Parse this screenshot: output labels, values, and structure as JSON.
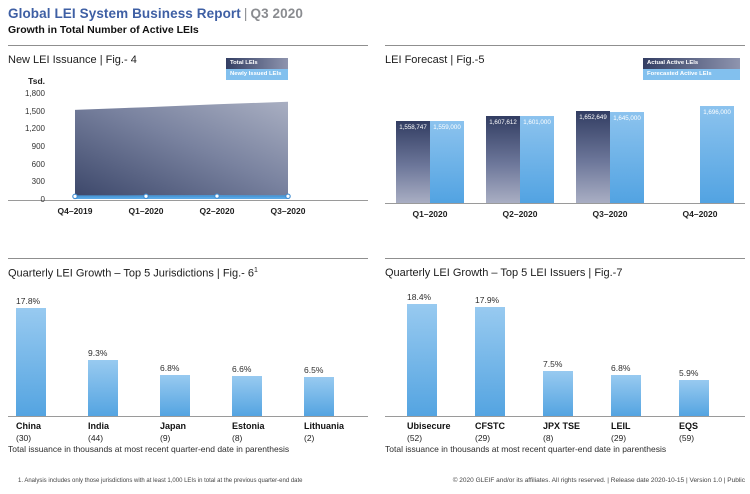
{
  "header": {
    "title": "Global LEI System Business Report",
    "divider": "|",
    "period": "Q3 2020",
    "subtitle": "Growth in Total Number of Active LEIs"
  },
  "footer": {
    "note_left": "Total issuance in thousands at most recent quarter-end date in parenthesis",
    "note_right": "Total issuance in thousands at most recent quarter-end date in parenthesis",
    "footnote": "1. Analysis includes only those jurisdictions with at least 1,000 LEIs in total at the previous quarter-end date",
    "copyright": "© 2020 GLEIF and/or its affiliates. All rights reserved.  |  Release date 2020-10-15  |  Version 1.0  |  Public"
  },
  "colors": {
    "brand_blue": "#3e5fa4",
    "muted_gray": "#8a8c90",
    "dark_series_top": "#323d62",
    "dark_series_bottom": "#a9aec3",
    "blue_series_top": "#98caf0",
    "blue_series_bottom": "#54a4e1",
    "legend_blue_bg": "#82c0ee",
    "axis_line": "#9a9a9a",
    "newly_issued_line": "#4a9ada"
  },
  "chart_data": [
    {
      "id": "fig4",
      "type": "area",
      "title": "New LEI Issuance",
      "fig": "|  Fig.- 4",
      "ylabel": "Tsd.",
      "yticks": [
        "1,800",
        "1,500",
        "1,200",
        "900",
        "600",
        "300",
        "0"
      ],
      "ylim": [
        0,
        1800
      ],
      "x": [
        "Q4–2019",
        "Q1–2020",
        "Q2–2020",
        "Q3–2020"
      ],
      "series": [
        {
          "name": "Total LEIs",
          "values": [
            1513,
            1559,
            1608,
            1653
          ],
          "estimated": true
        },
        {
          "name": "Newly Issued LEIs",
          "values": [
            44,
            46,
            49,
            46
          ],
          "estimated": true
        }
      ],
      "legend_position": "top-right",
      "grid": false
    },
    {
      "id": "fig5",
      "type": "bar",
      "title": "LEI Forecast",
      "fig": "|  Fig.-5",
      "categories": [
        "Q1–2020",
        "Q2–2020",
        "Q3–2020",
        "Q4–2020"
      ],
      "series": [
        {
          "name": "Actual Active LEIs",
          "values": [
            1558747,
            1607612,
            1652649,
            null
          ],
          "labels": [
            "1,558,747",
            "1,607,612",
            "1,652,649",
            null
          ]
        },
        {
          "name": "Forecasted Active LEIs",
          "values": [
            1559000,
            1601000,
            1645000,
            1696000
          ],
          "labels": [
            "1,559,000",
            "1,601,000",
            "1,645,000",
            "1,696,000"
          ]
        }
      ],
      "ylim": [
        800000,
        1696000
      ],
      "legend_position": "top-right",
      "grid": false
    },
    {
      "id": "fig6",
      "type": "bar",
      "title": "Quarterly LEI Growth – Top 5 Jurisdictions",
      "fig": "|  Fig.- 6",
      "fig_superscript": "1",
      "categories": [
        "China",
        "India",
        "Japan",
        "Estonia",
        "Lithuania"
      ],
      "category_counts": [
        "(30)",
        "(44)",
        "(9)",
        "(8)",
        "(2)"
      ],
      "values": [
        17.8,
        9.3,
        6.8,
        6.6,
        6.5
      ],
      "labels": [
        "17.8%",
        "9.3%",
        "6.8%",
        "6.6%",
        "6.5%"
      ],
      "ylim": [
        0,
        19.4
      ],
      "grid": false
    },
    {
      "id": "fig7",
      "type": "bar",
      "title": "Quarterly LEI Growth – Top 5 LEI Issuers",
      "fig": "|  Fig.-7",
      "categories": [
        "Ubisecure",
        "CFSTC",
        "JPX TSE",
        "LEIL",
        "EQS"
      ],
      "category_counts": [
        "(52)",
        "(29)",
        "(8)",
        "(29)",
        "(59)"
      ],
      "values": [
        18.4,
        17.9,
        7.5,
        6.8,
        5.9
      ],
      "labels": [
        "18.4%",
        "17.9%",
        "7.5%",
        "6.8%",
        "5.9%"
      ],
      "ylim": [
        0,
        19.4
      ],
      "grid": false
    }
  ]
}
